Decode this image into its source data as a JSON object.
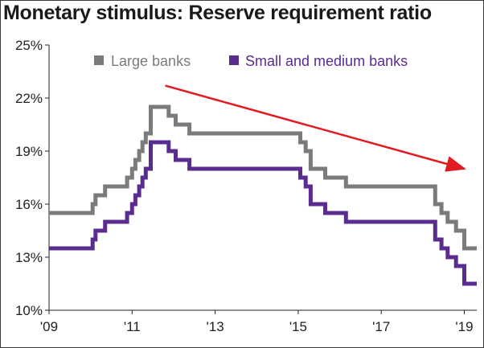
{
  "title": "Monetary stimulus: Reserve requirement ratio",
  "colors": {
    "large": "#7b7b7b",
    "small": "#5b2c90",
    "trend_arrow": "#e11b22",
    "axis": "#222222"
  },
  "chart_data": {
    "type": "line",
    "title": "Monetary stimulus: Reserve requirement ratio",
    "xlabel": "",
    "ylabel": "",
    "xlim": [
      2009.0,
      2019.3
    ],
    "ylim": [
      10,
      25
    ],
    "x_ticks": [
      2009,
      2011,
      2013,
      2015,
      2017,
      2019
    ],
    "x_tick_labels": [
      "'09",
      "'11",
      "'13",
      "'15",
      "'17",
      "'19"
    ],
    "y_ticks": [
      10,
      13,
      16,
      19,
      22,
      25
    ],
    "y_tick_labels": [
      "10%",
      "13%",
      "16%",
      "19%",
      "22%",
      "25%"
    ],
    "grid": false,
    "legend_position": "top",
    "series": [
      {
        "name": "Large banks",
        "color": "#7b7b7b",
        "step": true,
        "x": [
          2009.0,
          2010.05,
          2010.12,
          2010.35,
          2010.45,
          2010.88,
          2011.0,
          2011.08,
          2011.17,
          2011.25,
          2011.33,
          2011.45,
          2011.88,
          2012.05,
          2012.38,
          2015.05,
          2015.18,
          2015.3,
          2015.65,
          2015.85,
          2016.15,
          2018.3,
          2018.45,
          2018.6,
          2018.8,
          2019.0,
          2019.3
        ],
        "y": [
          15.5,
          16.0,
          16.5,
          17.0,
          17.0,
          17.5,
          18.0,
          18.5,
          19.0,
          19.5,
          20.0,
          21.5,
          21.0,
          20.5,
          20.0,
          19.5,
          19.0,
          18.0,
          17.5,
          17.5,
          17.0,
          16.0,
          15.5,
          15.0,
          14.5,
          13.5,
          13.5
        ]
      },
      {
        "name": "Small and medium banks",
        "color": "#5b2c90",
        "step": true,
        "x": [
          2009.0,
          2010.05,
          2010.12,
          2010.35,
          2010.45,
          2010.88,
          2011.0,
          2011.08,
          2011.17,
          2011.25,
          2011.33,
          2011.45,
          2011.88,
          2012.05,
          2012.38,
          2015.05,
          2015.18,
          2015.3,
          2015.65,
          2015.85,
          2016.15,
          2018.3,
          2018.45,
          2018.6,
          2018.8,
          2019.0,
          2019.3
        ],
        "y": [
          13.5,
          14.0,
          14.5,
          15.0,
          15.0,
          15.5,
          16.0,
          16.5,
          17.0,
          17.5,
          18.0,
          19.5,
          19.0,
          18.5,
          18.0,
          17.5,
          17.0,
          16.0,
          15.5,
          15.5,
          15.0,
          14.0,
          13.5,
          13.0,
          12.5,
          11.5,
          11.5
        ]
      }
    ],
    "annotations": [
      {
        "type": "trend-arrow",
        "color": "#e11b22",
        "from": [
          2011.8,
          22.7
        ],
        "to": [
          2019.0,
          18.0
        ]
      }
    ]
  }
}
